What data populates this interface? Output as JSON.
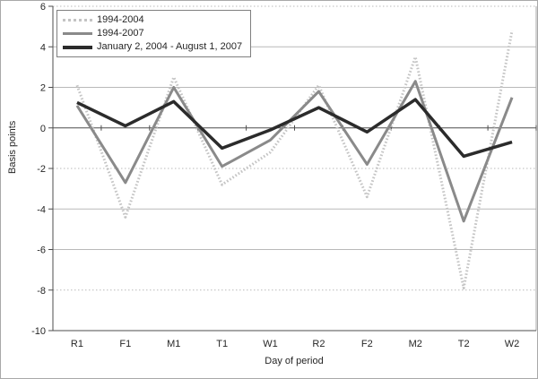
{
  "chart_data": {
    "type": "line",
    "title": "",
    "xlabel": "Day of period",
    "ylabel": "Basis points",
    "ylim": [
      -10,
      6
    ],
    "yticks": [
      6,
      4,
      2,
      0,
      -2,
      -4,
      -6,
      -8,
      -10
    ],
    "dotted_gridlines": [
      6,
      -2,
      -8
    ],
    "grid": true,
    "legend_position": "top-left",
    "categories": [
      "R1",
      "F1",
      "M1",
      "T1",
      "W1",
      "R2",
      "F2",
      "M2",
      "T2",
      "W2"
    ],
    "series": [
      {
        "name": "1994-2004",
        "color": "#c4c4c4",
        "width": 3,
        "dash": "1.6 2.2",
        "values": [
          2.1,
          -4.4,
          2.5,
          -2.8,
          -1.2,
          2.1,
          -3.4,
          3.5,
          -7.9,
          4.8
        ]
      },
      {
        "name": "1994-2007",
        "color": "#8a8a8a",
        "width": 3,
        "dash": "",
        "values": [
          1.1,
          -2.7,
          2.0,
          -1.9,
          -0.6,
          1.8,
          -1.8,
          2.3,
          -4.6,
          1.5
        ]
      },
      {
        "name": "January 2, 2004 - August 1, 2007",
        "color": "#2b2b2b",
        "width": 3.5,
        "dash": "",
        "values": [
          1.25,
          0.1,
          1.3,
          -1.0,
          -0.1,
          1.0,
          -0.2,
          1.4,
          -1.4,
          -0.7
        ]
      }
    ]
  },
  "colors": {
    "axis": "#4d4d4d",
    "grid": "#b9b9b9",
    "plot_border": "#a6a6a6",
    "text": "#262626"
  }
}
